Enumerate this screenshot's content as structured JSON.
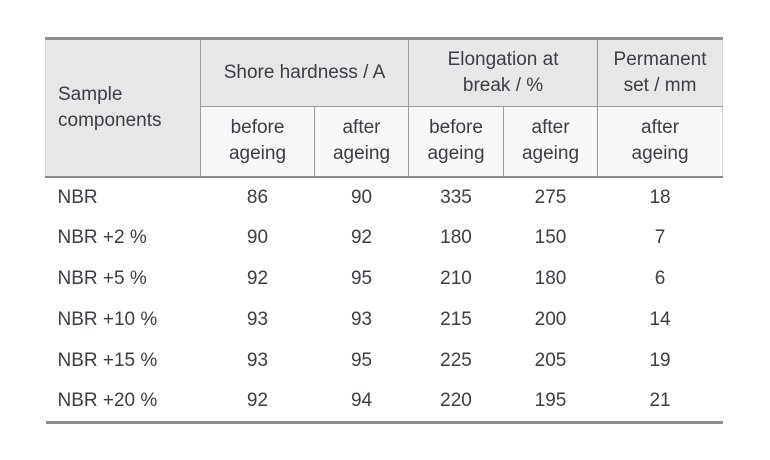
{
  "colors": {
    "header_bg": "#e7e7e7",
    "subheader_bg": "#f8f8f8",
    "grid_line": "#9a9a9a",
    "outer_rule": "#8d8d8d",
    "text": "#3b3e44"
  },
  "table": {
    "header": {
      "sample": {
        "line1": "Sample",
        "line2": "components"
      },
      "groups": [
        {
          "line1": "Shore hardness / A"
        },
        {
          "line1": "Elongation at",
          "line2": "break / %"
        },
        {
          "line1": "Permanent",
          "line2": "set / mm"
        }
      ],
      "subs": [
        {
          "line1": "before",
          "line2": "ageing"
        },
        {
          "line1": "after",
          "line2": "ageing"
        },
        {
          "line1": "before",
          "line2": "ageing"
        },
        {
          "line1": "after",
          "line2": "ageing"
        },
        {
          "line1": "after",
          "line2": "ageing"
        }
      ]
    },
    "rows": [
      {
        "sample": "NBR",
        "values": [
          "86",
          "90",
          "335",
          "275",
          "18"
        ]
      },
      {
        "sample": "NBR +2 %",
        "values": [
          "90",
          "92",
          "180",
          "150",
          "7"
        ]
      },
      {
        "sample": "NBR +5 %",
        "values": [
          "92",
          "95",
          "210",
          "180",
          "6"
        ]
      },
      {
        "sample": "NBR +10 %",
        "values": [
          "93",
          "93",
          "215",
          "200",
          "14"
        ]
      },
      {
        "sample": "NBR +15 %",
        "values": [
          "93",
          "95",
          "225",
          "205",
          "19"
        ]
      },
      {
        "sample": "NBR +20 %",
        "values": [
          "92",
          "94",
          "220",
          "195",
          "21"
        ]
      }
    ]
  }
}
